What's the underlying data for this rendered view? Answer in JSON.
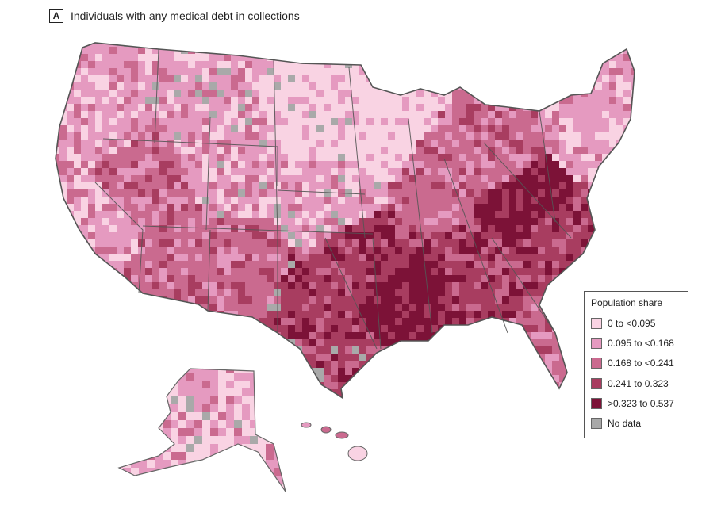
{
  "panel": {
    "letter": "A",
    "title": "Individuals with any medical debt in collections"
  },
  "legend": {
    "title": "Population share",
    "items": [
      {
        "label": "0 to <0.095",
        "color": "#f9d3e3"
      },
      {
        "label": "0.095 to <0.168",
        "color": "#e59ac0"
      },
      {
        "label": "0.168 to <0.241",
        "color": "#ca6a8f"
      },
      {
        "label": "0.241 to 0.323",
        "color": "#a83d60"
      },
      {
        "label": ">0.323 to 0.537",
        "color": "#7c1237"
      },
      {
        "label": "No data",
        "color": "#a9a9a9"
      }
    ]
  },
  "map_regions": {
    "West Coast": 1,
    "Mountain North": 1,
    "Nevada": 2,
    "Desert Southwest": 2,
    "Northern Plains": 0,
    "Upper Midwest": 0,
    "Central Plains": 1,
    "Texas": 3,
    "South Central": 3,
    "Lower Mississippi": 4,
    "Midwest": 2,
    "Southeast": 3,
    "Appalachia": 4,
    "Carolinas": 3,
    "Florida": 2,
    "Northeast": 1,
    "Alaska": 1,
    "Hawaii": 0
  }
}
